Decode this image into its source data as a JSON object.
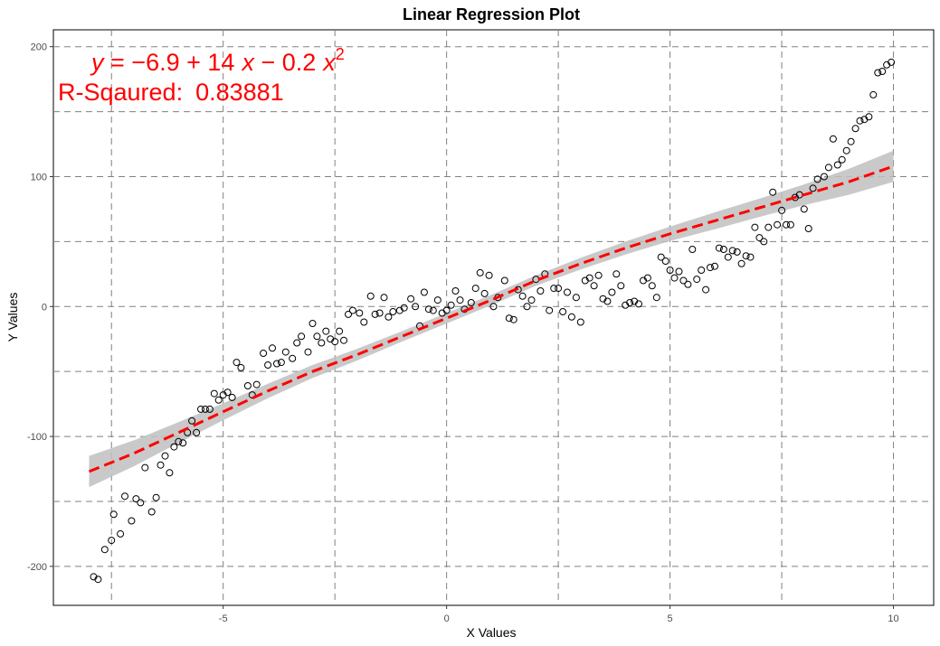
{
  "chart_data": {
    "type": "scatter",
    "title": "Linear Regression Plot",
    "xlabel": "X Values",
    "ylabel": "Y Values",
    "xlim": [
      -8.8,
      10.9
    ],
    "ylim": [
      -230,
      213
    ],
    "x_ticks": [
      -5,
      0,
      5,
      10
    ],
    "x_tick_labels": [
      "-5",
      "0",
      "5",
      "10"
    ],
    "y_ticks": [
      -200,
      -100,
      0,
      100,
      200
    ],
    "y_tick_labels": [
      "-200",
      "-100",
      "0",
      "100",
      "200"
    ],
    "minor_x": [
      -7.5,
      -2.5,
      2.5,
      7.5
    ],
    "minor_y": [
      -150,
      -50,
      50,
      150
    ],
    "grid": true,
    "legend": "none",
    "annotations": {
      "equation": {
        "y": "y",
        "eq": " = ",
        "minus1": "−",
        "c0": "6.9",
        "plus": " + ",
        "c1": "14",
        "x1": "x",
        "minus2": " − ",
        "c2": "0.2",
        "x2": "x",
        "exp": "2"
      },
      "r_squared_label": "R-Sqaured:",
      "r_squared_value": "0.83881"
    },
    "colors": {
      "fit_line": "#ff0000",
      "ribbon": "#bfbfbf",
      "points": "#000000",
      "grid": "#808080",
      "annotation": "#ff0000"
    },
    "fit": {
      "x": [
        -8,
        -7,
        -6,
        -5,
        -4,
        -3,
        -2,
        -1,
        0,
        1,
        2,
        3,
        4,
        5,
        6,
        7,
        8,
        9,
        10
      ],
      "y": [
        -127,
        -113,
        -97,
        -81,
        -65,
        -50,
        -37,
        -23,
        -9,
        5,
        20,
        33,
        45,
        56,
        66,
        76,
        86,
        96,
        108
      ],
      "ci_half": [
        12,
        10,
        8,
        6.5,
        5.5,
        5,
        4.5,
        4,
        4,
        4,
        4,
        4.5,
        5,
        5.5,
        6.5,
        7,
        8,
        10,
        12
      ]
    },
    "points": [
      [
        -7.9,
        -208
      ],
      [
        -7.8,
        -210
      ],
      [
        -7.65,
        -187
      ],
      [
        -7.5,
        -180
      ],
      [
        -7.45,
        -160
      ],
      [
        -7.3,
        -175
      ],
      [
        -7.2,
        -146
      ],
      [
        -7.05,
        -165
      ],
      [
        -6.95,
        -148
      ],
      [
        -6.85,
        -151
      ],
      [
        -6.75,
        -124
      ],
      [
        -6.6,
        -158
      ],
      [
        -6.5,
        -147
      ],
      [
        -6.4,
        -122
      ],
      [
        -6.3,
        -115
      ],
      [
        -6.2,
        -128
      ],
      [
        -6.1,
        -108
      ],
      [
        -6.0,
        -104
      ],
      [
        -5.9,
        -105
      ],
      [
        -5.8,
        -97
      ],
      [
        -5.7,
        -88
      ],
      [
        -5.6,
        -97
      ],
      [
        -5.5,
        -79
      ],
      [
        -5.4,
        -79
      ],
      [
        -5.3,
        -79
      ],
      [
        -5.2,
        -67
      ],
      [
        -5.1,
        -72
      ],
      [
        -5.0,
        -68
      ],
      [
        -4.9,
        -66
      ],
      [
        -4.8,
        -70
      ],
      [
        -4.7,
        -43
      ],
      [
        -4.6,
        -47
      ],
      [
        -4.45,
        -61
      ],
      [
        -4.35,
        -68
      ],
      [
        -4.25,
        -60
      ],
      [
        -4.1,
        -36
      ],
      [
        -4.0,
        -45
      ],
      [
        -3.9,
        -32
      ],
      [
        -3.8,
        -44
      ],
      [
        -3.7,
        -43
      ],
      [
        -3.6,
        -35
      ],
      [
        -3.45,
        -40
      ],
      [
        -3.35,
        -28
      ],
      [
        -3.25,
        -23
      ],
      [
        -3.1,
        -35
      ],
      [
        -3.0,
        -13
      ],
      [
        -2.9,
        -23
      ],
      [
        -2.8,
        -28
      ],
      [
        -2.7,
        -19
      ],
      [
        -2.6,
        -25
      ],
      [
        -2.5,
        -27
      ],
      [
        -2.4,
        -19
      ],
      [
        -2.3,
        -26
      ],
      [
        -2.2,
        -6
      ],
      [
        -2.1,
        -3
      ],
      [
        -1.95,
        -5
      ],
      [
        -1.85,
        -12
      ],
      [
        -1.7,
        8
      ],
      [
        -1.6,
        -6
      ],
      [
        -1.5,
        -5
      ],
      [
        -1.4,
        7
      ],
      [
        -1.3,
        -8
      ],
      [
        -1.2,
        -4
      ],
      [
        -1.05,
        -3
      ],
      [
        -0.95,
        -1
      ],
      [
        -0.8,
        6
      ],
      [
        -0.7,
        0
      ],
      [
        -0.6,
        -15
      ],
      [
        -0.5,
        11
      ],
      [
        -0.4,
        -2
      ],
      [
        -0.3,
        -3
      ],
      [
        -0.2,
        5
      ],
      [
        -0.1,
        -5
      ],
      [
        0.0,
        -3
      ],
      [
        0.1,
        1
      ],
      [
        0.2,
        12
      ],
      [
        0.3,
        5
      ],
      [
        0.4,
        -2
      ],
      [
        0.55,
        3
      ],
      [
        0.65,
        14
      ],
      [
        0.75,
        26
      ],
      [
        0.85,
        10
      ],
      [
        0.95,
        24
      ],
      [
        1.05,
        0
      ],
      [
        1.15,
        7
      ],
      [
        1.3,
        20
      ],
      [
        1.4,
        -9
      ],
      [
        1.5,
        -10
      ],
      [
        1.6,
        13
      ],
      [
        1.7,
        8
      ],
      [
        1.8,
        0
      ],
      [
        1.9,
        5
      ],
      [
        2.0,
        21
      ],
      [
        2.1,
        12
      ],
      [
        2.2,
        25
      ],
      [
        2.3,
        -3
      ],
      [
        2.4,
        14
      ],
      [
        2.5,
        14
      ],
      [
        2.6,
        -4
      ],
      [
        2.7,
        11
      ],
      [
        2.8,
        -8
      ],
      [
        2.9,
        7
      ],
      [
        3.0,
        -12
      ],
      [
        3.1,
        20
      ],
      [
        3.2,
        22
      ],
      [
        3.3,
        16
      ],
      [
        3.4,
        24
      ],
      [
        3.5,
        6
      ],
      [
        3.6,
        4
      ],
      [
        3.7,
        11
      ],
      [
        3.8,
        25
      ],
      [
        3.9,
        16
      ],
      [
        4.0,
        1
      ],
      [
        4.1,
        3
      ],
      [
        4.2,
        4
      ],
      [
        4.3,
        2
      ],
      [
        4.4,
        20
      ],
      [
        4.5,
        22
      ],
      [
        4.6,
        16
      ],
      [
        4.7,
        7
      ],
      [
        4.8,
        38
      ],
      [
        4.9,
        35
      ],
      [
        5.0,
        28
      ],
      [
        5.1,
        22
      ],
      [
        5.2,
        27
      ],
      [
        5.3,
        20
      ],
      [
        5.4,
        17
      ],
      [
        5.5,
        44
      ],
      [
        5.6,
        21
      ],
      [
        5.7,
        28
      ],
      [
        5.8,
        13
      ],
      [
        5.9,
        30
      ],
      [
        6.0,
        31
      ],
      [
        6.1,
        45
      ],
      [
        6.2,
        44
      ],
      [
        6.3,
        38
      ],
      [
        6.4,
        43
      ],
      [
        6.5,
        42
      ],
      [
        6.6,
        33
      ],
      [
        6.7,
        39
      ],
      [
        6.8,
        38
      ],
      [
        6.9,
        61
      ],
      [
        7.0,
        53
      ],
      [
        7.1,
        50
      ],
      [
        7.2,
        61
      ],
      [
        7.3,
        88
      ],
      [
        7.4,
        63
      ],
      [
        7.5,
        74
      ],
      [
        7.6,
        63
      ],
      [
        7.7,
        63
      ],
      [
        7.8,
        84
      ],
      [
        7.9,
        86
      ],
      [
        8.0,
        75
      ],
      [
        8.1,
        60
      ],
      [
        8.2,
        91
      ],
      [
        8.3,
        98
      ],
      [
        8.45,
        100
      ],
      [
        8.55,
        107
      ],
      [
        8.65,
        129
      ],
      [
        8.75,
        109
      ],
      [
        8.85,
        113
      ],
      [
        8.95,
        120
      ],
      [
        9.05,
        127
      ],
      [
        9.15,
        137
      ],
      [
        9.25,
        143
      ],
      [
        9.35,
        144
      ],
      [
        9.45,
        146
      ],
      [
        9.55,
        163
      ],
      [
        9.65,
        180
      ],
      [
        9.75,
        181
      ],
      [
        9.85,
        186
      ],
      [
        9.95,
        188
      ]
    ]
  }
}
